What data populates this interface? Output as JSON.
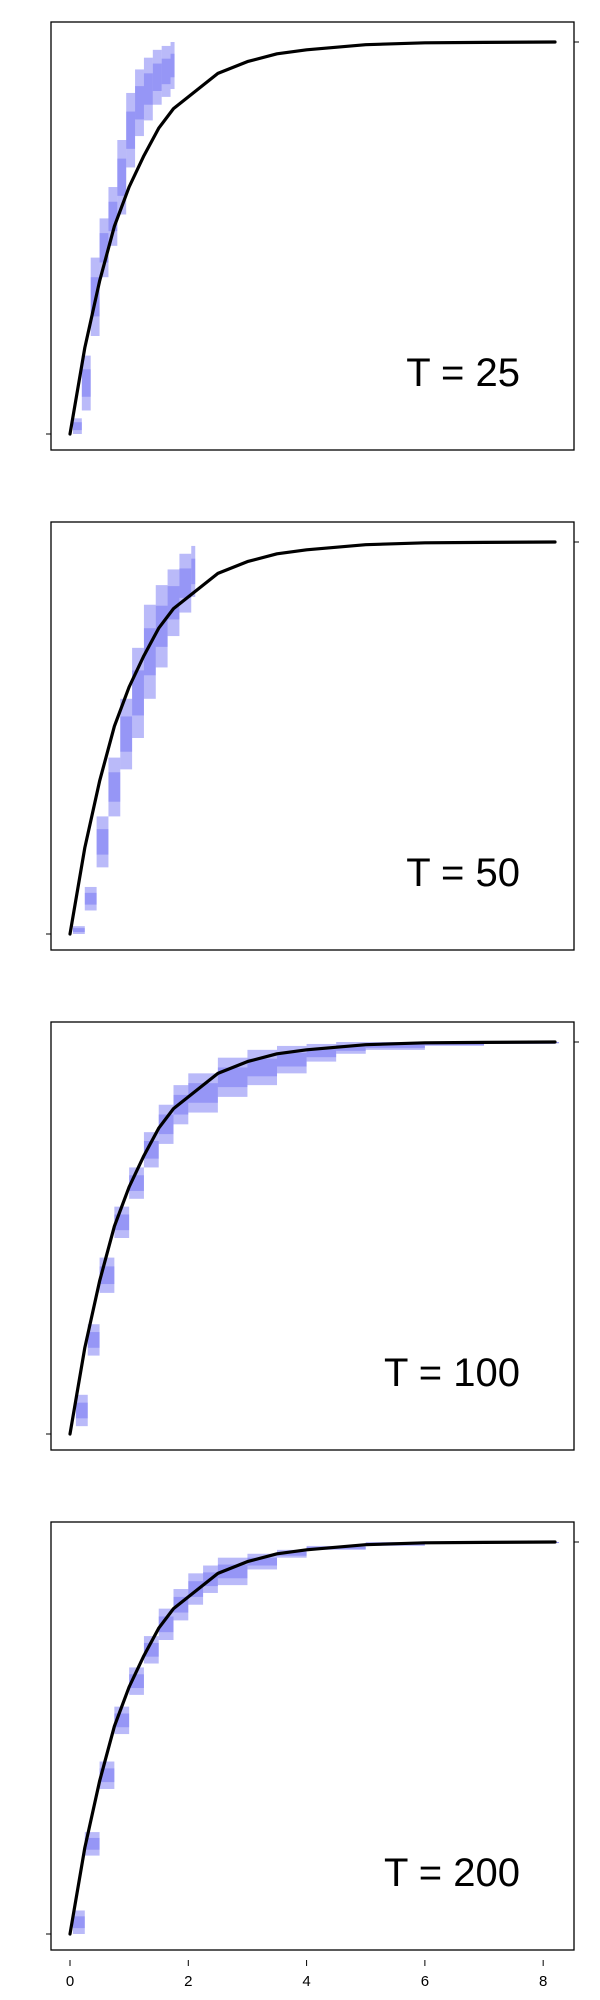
{
  "chart_data": {
    "type": "area",
    "x_axis": {
      "range": [
        0,
        8.2
      ],
      "ticks": [
        0,
        2,
        4,
        6,
        8
      ],
      "tick_labels": [
        "0",
        "2",
        "4",
        "6",
        "8"
      ]
    },
    "y_range": [
      0,
      1
    ],
    "true_curve": {
      "color": "#000000",
      "x": [
        0,
        0.25,
        0.5,
        0.75,
        1,
        1.25,
        1.5,
        1.75,
        2,
        2.5,
        3,
        3.5,
        4,
        5,
        6,
        7,
        8.2
      ],
      "y": [
        0,
        0.22,
        0.39,
        0.53,
        0.63,
        0.71,
        0.78,
        0.83,
        0.86,
        0.92,
        0.95,
        0.97,
        0.98,
        0.993,
        0.998,
        0.999,
        1.0
      ]
    },
    "band_color": "#4a4af0",
    "panels": [
      {
        "label": "T = 25",
        "band": {
          "x": [
            0.05,
            0.2,
            0.35,
            0.5,
            0.65,
            0.8,
            0.95,
            1.1,
            1.25,
            1.4,
            1.55,
            1.7
          ],
          "lower": [
            0.0,
            0.06,
            0.25,
            0.4,
            0.48,
            0.56,
            0.68,
            0.76,
            0.8,
            0.84,
            0.86,
            0.88
          ],
          "upper": [
            0.04,
            0.2,
            0.45,
            0.55,
            0.63,
            0.75,
            0.87,
            0.93,
            0.96,
            0.98,
            0.99,
            1.0
          ]
        }
      },
      {
        "label": "T = 50",
        "band": {
          "x": [
            0.05,
            0.25,
            0.45,
            0.65,
            0.85,
            1.05,
            1.25,
            1.45,
            1.65,
            1.85,
            2.05
          ],
          "lower": [
            0.0,
            0.06,
            0.17,
            0.3,
            0.42,
            0.5,
            0.6,
            0.68,
            0.76,
            0.82,
            0.86
          ],
          "upper": [
            0.02,
            0.12,
            0.3,
            0.45,
            0.6,
            0.73,
            0.84,
            0.89,
            0.93,
            0.97,
            0.99
          ]
        }
      },
      {
        "label": "T = 100",
        "band": {
          "x": [
            0.1,
            0.3,
            0.5,
            0.75,
            1.0,
            1.25,
            1.5,
            1.75,
            2.0,
            2.5,
            3.0,
            3.5,
            4.0,
            4.5,
            5.0,
            6.0,
            7.0,
            8.2
          ],
          "lower": [
            0.02,
            0.2,
            0.36,
            0.5,
            0.6,
            0.68,
            0.74,
            0.79,
            0.82,
            0.86,
            0.89,
            0.92,
            0.95,
            0.97,
            0.98,
            0.99,
            0.995,
            0.997
          ],
          "upper": [
            0.1,
            0.28,
            0.45,
            0.58,
            0.68,
            0.77,
            0.84,
            0.89,
            0.92,
            0.96,
            0.98,
            0.99,
            0.995,
            1.0,
            1.0,
            1.0,
            1.0,
            1.0
          ]
        }
      },
      {
        "label": "T = 200",
        "band": {
          "x": [
            0.05,
            0.25,
            0.5,
            0.75,
            1.0,
            1.25,
            1.5,
            1.75,
            2.0,
            2.25,
            2.5,
            3.0,
            3.5,
            4.0,
            5.0,
            6.0,
            7.0,
            8.2
          ],
          "lower": [
            0.0,
            0.2,
            0.37,
            0.51,
            0.61,
            0.69,
            0.75,
            0.8,
            0.84,
            0.87,
            0.89,
            0.93,
            0.96,
            0.98,
            0.99,
            0.995,
            0.997,
            0.999
          ],
          "upper": [
            0.06,
            0.26,
            0.44,
            0.58,
            0.68,
            0.76,
            0.83,
            0.88,
            0.92,
            0.94,
            0.96,
            0.97,
            0.98,
            0.99,
            1.0,
            1.0,
            1.0,
            1.0
          ]
        }
      }
    ]
  }
}
